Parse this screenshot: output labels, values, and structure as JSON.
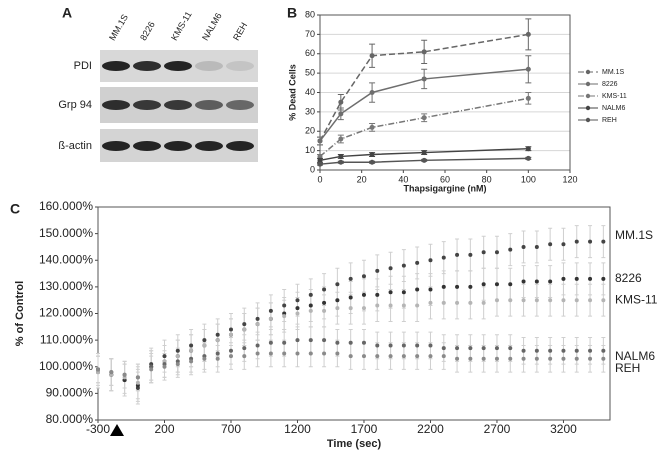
{
  "blot": {
    "panel_label": "A",
    "lanes": [
      "MM.1S",
      "8226",
      "KMS-11",
      "NALM6",
      "REH"
    ],
    "rows": [
      "PDI",
      "Grp 94",
      "ß-actin"
    ]
  },
  "chart_data": [
    {
      "type": "line",
      "panel_label": "B",
      "xlabel": "Thapsigargine (nM)",
      "ylabel": "% Dead Cells",
      "x": [
        0,
        10,
        25,
        50,
        100
      ],
      "xlim": [
        0,
        120
      ],
      "xticks": [
        0,
        20,
        40,
        60,
        80,
        100,
        120
      ],
      "ylim": [
        0,
        80
      ],
      "yticks": [
        0,
        10,
        20,
        30,
        40,
        50,
        60,
        70,
        80
      ],
      "grid": true,
      "legend": "right",
      "series": [
        {
          "name": "MM.1S",
          "color": "#666666",
          "line_style": "dashed",
          "values": [
            15,
            35,
            59,
            61,
            70
          ],
          "errors": [
            2,
            4,
            6,
            6,
            8
          ]
        },
        {
          "name": "8226",
          "color": "#6e6e6e",
          "line_style": "solid",
          "values": [
            15,
            29,
            40,
            47,
            52
          ],
          "errors": [
            2,
            3,
            5,
            5,
            7
          ]
        },
        {
          "name": "KMS-11",
          "color": "#777777",
          "line_style": "dashdot",
          "values": [
            7,
            16,
            22,
            27,
            37
          ],
          "errors": [
            1,
            2,
            2,
            2,
            3
          ]
        },
        {
          "name": "NALM6",
          "color": "#444444",
          "line_style": "solid",
          "values": [
            5,
            7,
            8,
            9,
            11
          ],
          "errors": [
            1,
            1,
            1,
            1,
            1
          ]
        },
        {
          "name": "REH",
          "color": "#555555",
          "line_style": "solid",
          "values": [
            3,
            4,
            4,
            5,
            6
          ],
          "errors": [
            0.5,
            0.5,
            0.5,
            0.5,
            0.5
          ]
        }
      ]
    },
    {
      "type": "scatter",
      "panel_label": "C",
      "xlabel": "Time (sec)",
      "ylabel": "% of Control",
      "x": [
        -300,
        -200,
        -100,
        0,
        100,
        200,
        300,
        400,
        500,
        600,
        700,
        800,
        900,
        1000,
        1100,
        1200,
        1300,
        1400,
        1500,
        1600,
        1700,
        1800,
        1900,
        2000,
        2100,
        2200,
        2300,
        2400,
        2500,
        2600,
        2700,
        2800,
        2900,
        3000,
        3100,
        3200,
        3300,
        3400,
        3500
      ],
      "xlim": [
        -300,
        3550
      ],
      "xticks": [
        -300,
        200,
        700,
        1200,
        1700,
        2200,
        2700,
        3200
      ],
      "ylim": [
        80,
        160
      ],
      "yticks": [
        {
          "value": 80,
          "label": "80.000%"
        },
        {
          "value": 90,
          "label": "90.000%"
        },
        {
          "value": 100,
          "label": "100.000%"
        },
        {
          "value": 110,
          "label": "110.000%"
        },
        {
          "value": 120,
          "label": "120.000%"
        },
        {
          "value": 130,
          "label": "130.000%"
        },
        {
          "value": 140,
          "label": "140.000%"
        },
        {
          "value": 150,
          "label": "150.000%"
        },
        {
          "value": 160,
          "label": "160.000%"
        }
      ],
      "grid": false,
      "error_color": "#cfcfcf",
      "series": [
        {
          "name": "MM.1S",
          "color": "#444444",
          "error": 6,
          "values": [
            99,
            97,
            95,
            92,
            101,
            104,
            106,
            108,
            110,
            112,
            114,
            116,
            118,
            121,
            123,
            125,
            127,
            129,
            131,
            133,
            134,
            136,
            137,
            138,
            139,
            140,
            141,
            142,
            142,
            143,
            143,
            144,
            145,
            145,
            146,
            146,
            147,
            147,
            147
          ]
        },
        {
          "name": "8226",
          "color": "#333333",
          "error": 6,
          "values": [
            98,
            97,
            95,
            93,
            100,
            102,
            104,
            106,
            108,
            110,
            112,
            114,
            116,
            118,
            120,
            122,
            123,
            124,
            125,
            126,
            127,
            127,
            128,
            128,
            129,
            129,
            130,
            130,
            130,
            131,
            131,
            131,
            132,
            132,
            132,
            133,
            133,
            133,
            133
          ]
        },
        {
          "name": "KMS-11",
          "color": "#b5b5b5",
          "error": 6,
          "values": [
            98,
            97,
            96,
            94,
            100,
            102,
            104,
            106,
            108,
            110,
            112,
            114,
            116,
            118,
            119,
            120,
            121,
            121,
            122,
            122,
            122,
            123,
            123,
            123,
            123,
            124,
            124,
            124,
            124,
            124,
            125,
            125,
            125,
            125,
            125,
            125,
            125,
            125,
            125
          ]
        },
        {
          "name": "NALM6",
          "color": "#666666",
          "error": 5,
          "values": [
            99,
            98,
            97,
            96,
            100,
            101,
            102,
            103,
            104,
            105,
            106,
            107,
            108,
            109,
            109,
            110,
            110,
            110,
            109,
            109,
            109,
            108,
            108,
            108,
            108,
            108,
            107,
            107,
            107,
            107,
            107,
            107,
            106,
            106,
            106,
            106,
            106,
            106,
            106
          ]
        },
        {
          "name": "REH",
          "color": "#8a8a8a",
          "error": 5,
          "values": [
            99,
            98,
            97,
            96,
            99,
            100,
            101,
            102,
            103,
            103,
            104,
            104,
            105,
            105,
            105,
            105,
            105,
            105,
            105,
            104,
            104,
            104,
            104,
            104,
            104,
            104,
            104,
            103,
            103,
            103,
            103,
            103,
            103,
            103,
            103,
            103,
            103,
            103,
            103
          ]
        }
      ]
    }
  ]
}
